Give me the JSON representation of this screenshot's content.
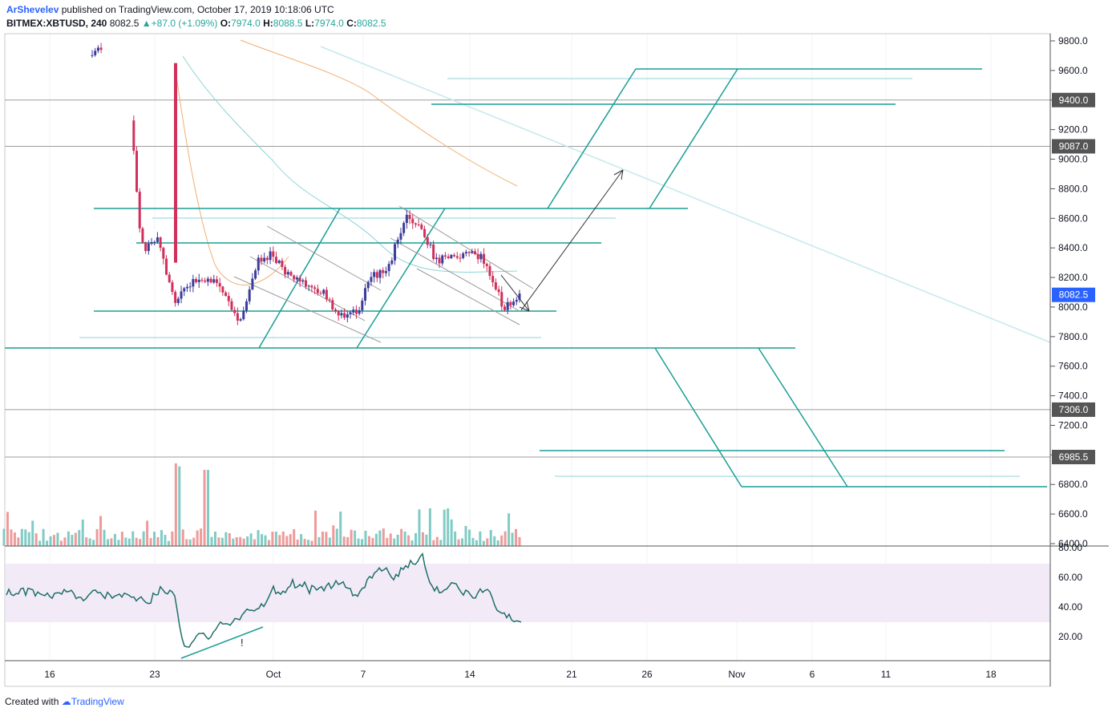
{
  "header": {
    "author": "ArShevelev",
    "published": "published on TradingView.com, October 17, 2019 10:18:06 UTC",
    "symbol": "BITMEX:XBTUSD, 240",
    "last": "8082.5",
    "change": "+87.0 (+1.09%)",
    "o_label": "O:",
    "o": "7974.0",
    "h_label": "H:",
    "h": "8088.5",
    "l_label": "L:",
    "l": "7974.0",
    "c_label": "C:",
    "c": "8082.5"
  },
  "footer": {
    "created": "Created with",
    "brand": "TradingView"
  },
  "colors": {
    "up": "#26a69a",
    "down": "#ef5350",
    "candle_up": "#3c3c9a",
    "candle_down": "#d0305a",
    "teal": "#1a9e96",
    "light_teal": "#8fd3d8",
    "orange": "#f0b070",
    "rsi": "#1f6f6a",
    "rsi_band": "#f3eaf7",
    "price_marker": "#2962ff",
    "marker_gray": "#555555"
  },
  "chart_data": [
    {
      "type": "candlestick",
      "title": "",
      "x_ticks": [
        "16",
        "23",
        "Oct",
        "7",
        "14",
        "21",
        "26",
        "Nov",
        "6",
        "11",
        "18"
      ],
      "y_ticks": [
        "9800.0",
        "9600.0",
        "9400.0",
        "9200.0",
        "9000.0",
        "8800.0",
        "8600.0",
        "8400.0",
        "8200.0",
        "8000.0",
        "7800.0",
        "7600.0",
        "7400.0",
        "7200.0",
        "7000.0",
        "6800.0",
        "6600.0",
        "6400.0"
      ],
      "ylim": [
        6400,
        9850
      ],
      "price_markers": [
        {
          "label": "9400.0",
          "value": 9400
        },
        {
          "label": "9087.0",
          "value": 9087
        },
        {
          "label": "7306.0",
          "value": 7306
        },
        {
          "label": "6985.5",
          "value": 6985.5
        },
        {
          "label": "8082.5",
          "value": 8082.5,
          "current": true
        }
      ],
      "horizontal_levels": [
        9400,
        9087,
        7306,
        6985.5
      ],
      "close_series_approx": [
        [
          "2019-09-19",
          9700
        ],
        [
          "2019-09-20",
          9780
        ],
        [
          "2019-09-24",
          9720
        ],
        [
          "2019-09-24T12",
          8400
        ],
        [
          "2019-09-25",
          8450
        ],
        [
          "2019-09-26",
          8050
        ],
        [
          "2019-09-27",
          8150
        ],
        [
          "2019-09-28",
          8200
        ],
        [
          "2019-09-29",
          8100
        ],
        [
          "2019-09-30",
          7900
        ],
        [
          "2019-10-01",
          8300
        ],
        [
          "2019-10-02",
          8350
        ],
        [
          "2019-10-03",
          8200
        ],
        [
          "2019-10-04",
          8150
        ],
        [
          "2019-10-05",
          8100
        ],
        [
          "2019-10-06",
          7950
        ],
        [
          "2019-10-07",
          7950
        ],
        [
          "2019-10-08",
          8200
        ],
        [
          "2019-10-09",
          8250
        ],
        [
          "2019-10-10",
          8600
        ],
        [
          "2019-10-11",
          8550
        ],
        [
          "2019-10-12",
          8300
        ],
        [
          "2019-10-13",
          8350
        ],
        [
          "2019-10-14",
          8380
        ],
        [
          "2019-10-15",
          8300
        ],
        [
          "2019-10-16",
          8000
        ],
        [
          "2019-10-17",
          8082.5
        ]
      ]
    },
    {
      "type": "bar",
      "title": "Volume",
      "values_relative": []
    },
    {
      "type": "line",
      "title": "RSI",
      "y_ticks": [
        "80.00",
        "60.00",
        "40.00",
        "20.00"
      ],
      "ylim": [
        0,
        80
      ],
      "band": [
        30,
        70
      ],
      "annotation": "!"
    }
  ]
}
